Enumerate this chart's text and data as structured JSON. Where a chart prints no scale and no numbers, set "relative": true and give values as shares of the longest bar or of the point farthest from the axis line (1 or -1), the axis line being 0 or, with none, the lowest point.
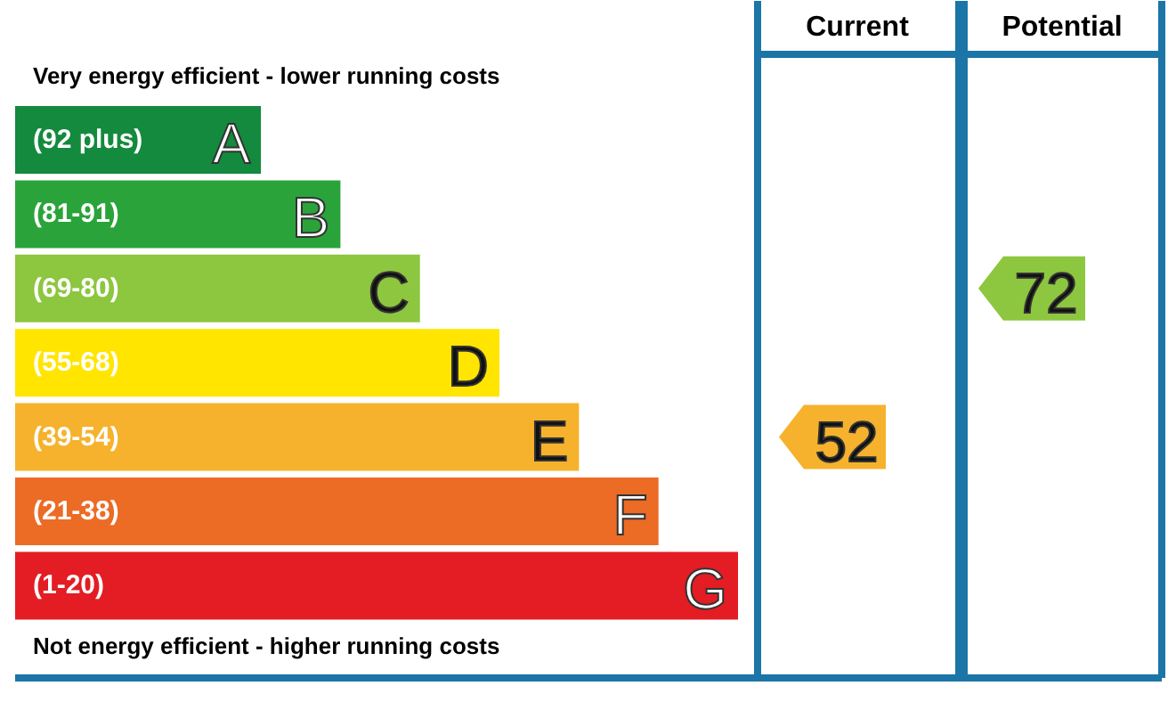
{
  "chart_data": {
    "type": "bar",
    "orientation": "horizontal",
    "relative": true,
    "categories": [
      "(92 plus) A",
      "(81-91) B",
      "(69-80) C",
      "(55-68) D",
      "(39-54) E",
      "(21-38) F",
      "(1-20) G"
    ],
    "values": [
      0.34,
      0.45,
      0.56,
      0.67,
      0.78,
      0.89,
      1
    ],
    "colors": [
      "#138a3d",
      "#2aa43a",
      "#8dc63f",
      "#ffe500",
      "#f6b22c",
      "#ec6b25",
      "#e31d23"
    ],
    "annotations": [
      "Very energy efficient - lower running costs",
      "Not energy efficient - higher running costs",
      "Current",
      "Potential",
      "52",
      "72"
    ]
  }
}
